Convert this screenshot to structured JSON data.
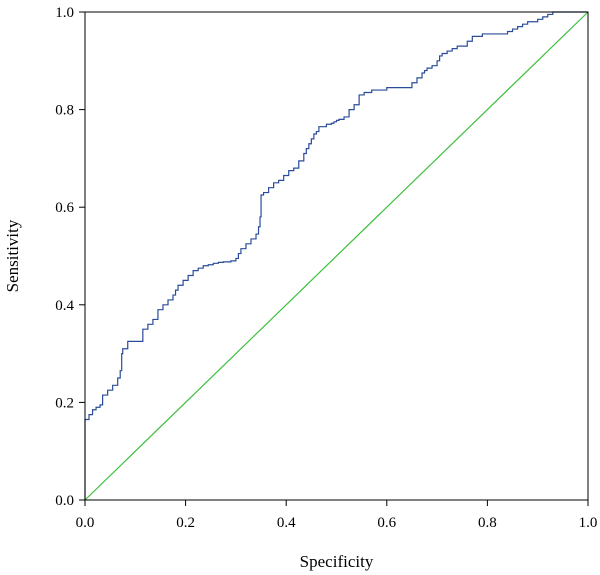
{
  "chart_data": {
    "type": "line",
    "title": "",
    "xlabel": "Specificity",
    "ylabel": "Sensitivity",
    "xlim": [
      0.0,
      1.0
    ],
    "ylim": [
      0.0,
      1.0
    ],
    "xticks": [
      "0.0",
      "0.2",
      "0.4",
      "0.6",
      "0.8",
      "1.0"
    ],
    "yticks": [
      "0.0",
      "0.2",
      "0.4",
      "0.6",
      "0.8",
      "1.0"
    ],
    "grid": false,
    "legend": "none",
    "series": [
      {
        "color": "#2b4c9b",
        "step": true,
        "x": [
          0.0,
          0.0,
          0.008,
          0.015,
          0.022,
          0.03,
          0.035,
          0.045,
          0.055,
          0.065,
          0.07,
          0.073,
          0.075,
          0.085,
          0.115,
          0.125,
          0.135,
          0.145,
          0.155,
          0.165,
          0.175,
          0.18,
          0.185,
          0.195,
          0.205,
          0.215,
          0.225,
          0.235,
          0.245,
          0.255,
          0.265,
          0.275,
          0.29,
          0.3,
          0.305,
          0.31,
          0.32,
          0.33,
          0.34,
          0.345,
          0.348,
          0.35,
          0.355,
          0.365,
          0.375,
          0.385,
          0.395,
          0.405,
          0.415,
          0.425,
          0.435,
          0.44,
          0.445,
          0.45,
          0.455,
          0.46,
          0.465,
          0.475,
          0.48,
          0.49,
          0.495,
          0.5,
          0.505,
          0.515,
          0.525,
          0.535,
          0.545,
          0.555,
          0.56,
          0.57,
          0.6,
          0.61,
          0.64,
          0.65,
          0.66,
          0.67,
          0.675,
          0.68,
          0.69,
          0.7,
          0.705,
          0.71,
          0.72,
          0.73,
          0.74,
          0.76,
          0.77,
          0.78,
          0.79,
          0.8,
          0.82,
          0.84,
          0.85,
          0.86,
          0.87,
          0.88,
          0.9,
          0.91,
          0.92,
          0.93,
          0.94,
          0.95,
          0.96,
          0.97,
          0.98,
          0.99,
          1.0
        ],
        "y": [
          0.0,
          0.165,
          0.175,
          0.185,
          0.19,
          0.195,
          0.215,
          0.225,
          0.235,
          0.25,
          0.265,
          0.3,
          0.31,
          0.325,
          0.35,
          0.36,
          0.37,
          0.39,
          0.4,
          0.41,
          0.42,
          0.43,
          0.44,
          0.45,
          0.46,
          0.47,
          0.475,
          0.48,
          0.482,
          0.485,
          0.487,
          0.488,
          0.49,
          0.495,
          0.505,
          0.515,
          0.525,
          0.535,
          0.545,
          0.56,
          0.58,
          0.625,
          0.63,
          0.64,
          0.65,
          0.655,
          0.665,
          0.675,
          0.68,
          0.695,
          0.71,
          0.72,
          0.73,
          0.74,
          0.75,
          0.755,
          0.765,
          0.765,
          0.77,
          0.772,
          0.775,
          0.778,
          0.78,
          0.785,
          0.8,
          0.81,
          0.83,
          0.835,
          0.835,
          0.84,
          0.845,
          0.845,
          0.845,
          0.855,
          0.865,
          0.875,
          0.88,
          0.885,
          0.89,
          0.9,
          0.91,
          0.915,
          0.92,
          0.925,
          0.93,
          0.94,
          0.95,
          0.95,
          0.955,
          0.955,
          0.955,
          0.96,
          0.965,
          0.97,
          0.975,
          0.98,
          0.985,
          0.99,
          0.995,
          1.0,
          1.0,
          1.0,
          1.0,
          1.0,
          1.0,
          1.0,
          1.0
        ]
      },
      {
        "color": "#3cbf3c",
        "step": false,
        "x": [
          0.0,
          1.0
        ],
        "y": [
          0.0,
          1.0
        ]
      }
    ]
  }
}
